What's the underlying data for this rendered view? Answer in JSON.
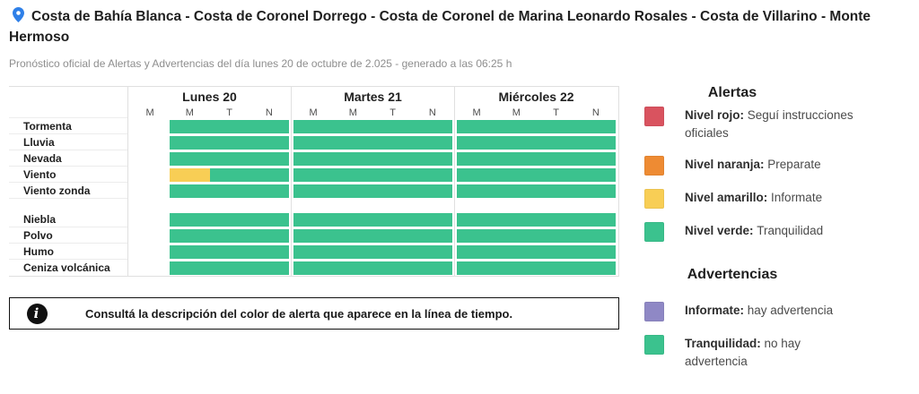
{
  "header": {
    "title": "Costa de Bahía Blanca - Costa de Coronel Dorrego - Costa de Coronel de Marina Leonardo Rosales - Costa de Villarino - Monte Hermoso",
    "subtitle": "Pronóstico oficial de Alertas y Advertencias del día lunes 20 de octubre de 2.025 - generado a las 06:25 h"
  },
  "timeline": {
    "days": [
      {
        "label": "Lunes 20",
        "periods": [
          "M",
          "M",
          "T",
          "N"
        ]
      },
      {
        "label": "Martes 21",
        "periods": [
          "M",
          "M",
          "T",
          "N"
        ]
      },
      {
        "label": "Miércoles 22",
        "periods": [
          "M",
          "M",
          "T",
          "N"
        ]
      }
    ],
    "groups": [
      {
        "rows": [
          {
            "label": "Tormenta",
            "cells": [
              "none",
              "green",
              "green",
              "green",
              "green",
              "green",
              "green",
              "green",
              "green",
              "green",
              "green",
              "green"
            ]
          },
          {
            "label": "Lluvia",
            "cells": [
              "none",
              "green",
              "green",
              "green",
              "green",
              "green",
              "green",
              "green",
              "green",
              "green",
              "green",
              "green"
            ]
          },
          {
            "label": "Nevada",
            "cells": [
              "none",
              "green",
              "green",
              "green",
              "green",
              "green",
              "green",
              "green",
              "green",
              "green",
              "green",
              "green"
            ]
          },
          {
            "label": "Viento",
            "cells": [
              "none",
              "yellow",
              "green",
              "green",
              "green",
              "green",
              "green",
              "green",
              "green",
              "green",
              "green",
              "green"
            ]
          },
          {
            "label": "Viento zonda",
            "cells": [
              "none",
              "green",
              "green",
              "green",
              "green",
              "green",
              "green",
              "green",
              "green",
              "green",
              "green",
              "green"
            ]
          }
        ]
      },
      {
        "rows": [
          {
            "label": "Niebla",
            "cells": [
              "none",
              "green",
              "green",
              "green",
              "green",
              "green",
              "green",
              "green",
              "green",
              "green",
              "green",
              "green"
            ]
          },
          {
            "label": "Polvo",
            "cells": [
              "none",
              "green",
              "green",
              "green",
              "green",
              "green",
              "green",
              "green",
              "green",
              "green",
              "green",
              "green"
            ]
          },
          {
            "label": "Humo",
            "cells": [
              "none",
              "green",
              "green",
              "green",
              "green",
              "green",
              "green",
              "green",
              "green",
              "green",
              "green",
              "green"
            ]
          },
          {
            "label": "Ceniza volcánica",
            "cells": [
              "none",
              "green",
              "green",
              "green",
              "green",
              "green",
              "green",
              "green",
              "green",
              "green",
              "green",
              "green"
            ]
          }
        ]
      }
    ]
  },
  "info_box": {
    "icon": "i",
    "text": "Consultá la descripción del color de alerta que aparece en la línea de tiempo."
  },
  "legend": {
    "alertas": {
      "title": "Alertas",
      "items": [
        {
          "name": "Nivel rojo",
          "description": "Seguí instrucciones oficiales",
          "color": "#d9535f"
        },
        {
          "name": "Nivel naranja",
          "description": "Preparate",
          "color": "#ee8b33"
        },
        {
          "name": "Nivel amarillo",
          "description": "Informate",
          "color": "#f8ce55"
        },
        {
          "name": "Nivel verde",
          "description": "Tranquilidad",
          "color": "#3bc28e"
        }
      ]
    },
    "advertencias": {
      "title": "Advertencias",
      "items": [
        {
          "name": "Informate",
          "description": "hay advertencia",
          "color": "#8f88c5"
        },
        {
          "name": "Tranquilidad",
          "description": "no hay advertencia",
          "color": "#3bc28e"
        }
      ]
    }
  },
  "colors": {
    "green": "#3bc28e",
    "yellow": "#f8ce55",
    "red": "#d9535f",
    "orange": "#ee8b33",
    "purple": "#8f88c5",
    "pin_blue": "#2f80e8",
    "grid_border": "#e0e0e0"
  }
}
